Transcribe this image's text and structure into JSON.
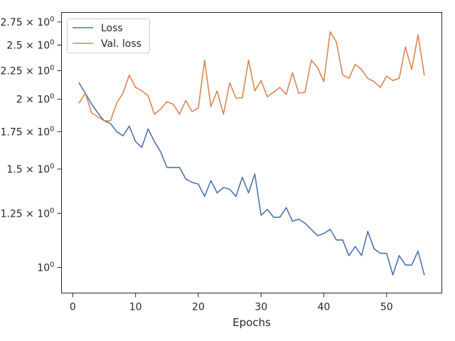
{
  "chart_data": {
    "type": "line",
    "title": "",
    "xlabel": "Epochs",
    "ylabel": "",
    "y_scale": "log",
    "grid": false,
    "legend_position": "top-left",
    "xlim": [
      -1.8,
      58.8
    ],
    "ylim": [
      0.9,
      2.86
    ],
    "x_ticks": [
      0,
      10,
      20,
      30,
      40,
      50
    ],
    "y_ticks": [
      {
        "value": 1.0,
        "base": "10",
        "exp": "0"
      },
      {
        "value": 1.25,
        "base": "1.25 × 10",
        "exp": "0"
      },
      {
        "value": 1.5,
        "base": "1.5 × 10",
        "exp": "0"
      },
      {
        "value": 1.75,
        "base": "1.75 × 10",
        "exp": "0"
      },
      {
        "value": 2.0,
        "base": "2 × 10",
        "exp": "0"
      },
      {
        "value": 2.25,
        "base": "2.25 × 10",
        "exp": "0"
      },
      {
        "value": 2.5,
        "base": "2.5 × 10",
        "exp": "0"
      },
      {
        "value": 2.75,
        "base": "2.75 × 10",
        "exp": "0"
      }
    ],
    "x": [
      1,
      2,
      3,
      4,
      5,
      6,
      7,
      8,
      9,
      10,
      11,
      12,
      13,
      14,
      15,
      16,
      17,
      18,
      19,
      20,
      21,
      22,
      23,
      24,
      25,
      26,
      27,
      28,
      29,
      30,
      31,
      32,
      33,
      34,
      35,
      36,
      37,
      38,
      39,
      40,
      41,
      42,
      43,
      44,
      45,
      46,
      47,
      48,
      49,
      50,
      51,
      52,
      53,
      54,
      55,
      56
    ],
    "series": [
      {
        "name": "Loss",
        "color": "#4c72b0",
        "values": [
          2.14,
          2.05,
          1.96,
          1.89,
          1.83,
          1.81,
          1.75,
          1.72,
          1.79,
          1.68,
          1.64,
          1.77,
          1.68,
          1.61,
          1.51,
          1.51,
          1.51,
          1.44,
          1.42,
          1.41,
          1.34,
          1.43,
          1.36,
          1.39,
          1.38,
          1.34,
          1.45,
          1.36,
          1.47,
          1.24,
          1.27,
          1.23,
          1.23,
          1.28,
          1.21,
          1.22,
          1.2,
          1.17,
          1.14,
          1.15,
          1.17,
          1.12,
          1.12,
          1.05,
          1.09,
          1.05,
          1.16,
          1.08,
          1.06,
          1.06,
          0.97,
          1.05,
          1.01,
          1.01,
          1.07,
          0.97
        ]
      },
      {
        "name": "Val. loss",
        "color": "#dd8452",
        "values": [
          1.97,
          2.05,
          1.89,
          1.86,
          1.83,
          1.83,
          1.97,
          2.05,
          2.21,
          2.1,
          2.07,
          2.03,
          1.88,
          1.92,
          1.98,
          1.96,
          1.88,
          1.99,
          1.9,
          1.93,
          2.35,
          1.94,
          2.07,
          1.88,
          2.14,
          2.01,
          2.01,
          2.35,
          2.07,
          2.16,
          2.02,
          2.06,
          2.1,
          2.04,
          2.23,
          2.05,
          2.06,
          2.35,
          2.28,
          2.15,
          2.64,
          2.53,
          2.21,
          2.18,
          2.31,
          2.26,
          2.18,
          2.15,
          2.1,
          2.2,
          2.16,
          2.18,
          2.48,
          2.26,
          2.61,
          2.21
        ]
      }
    ]
  }
}
